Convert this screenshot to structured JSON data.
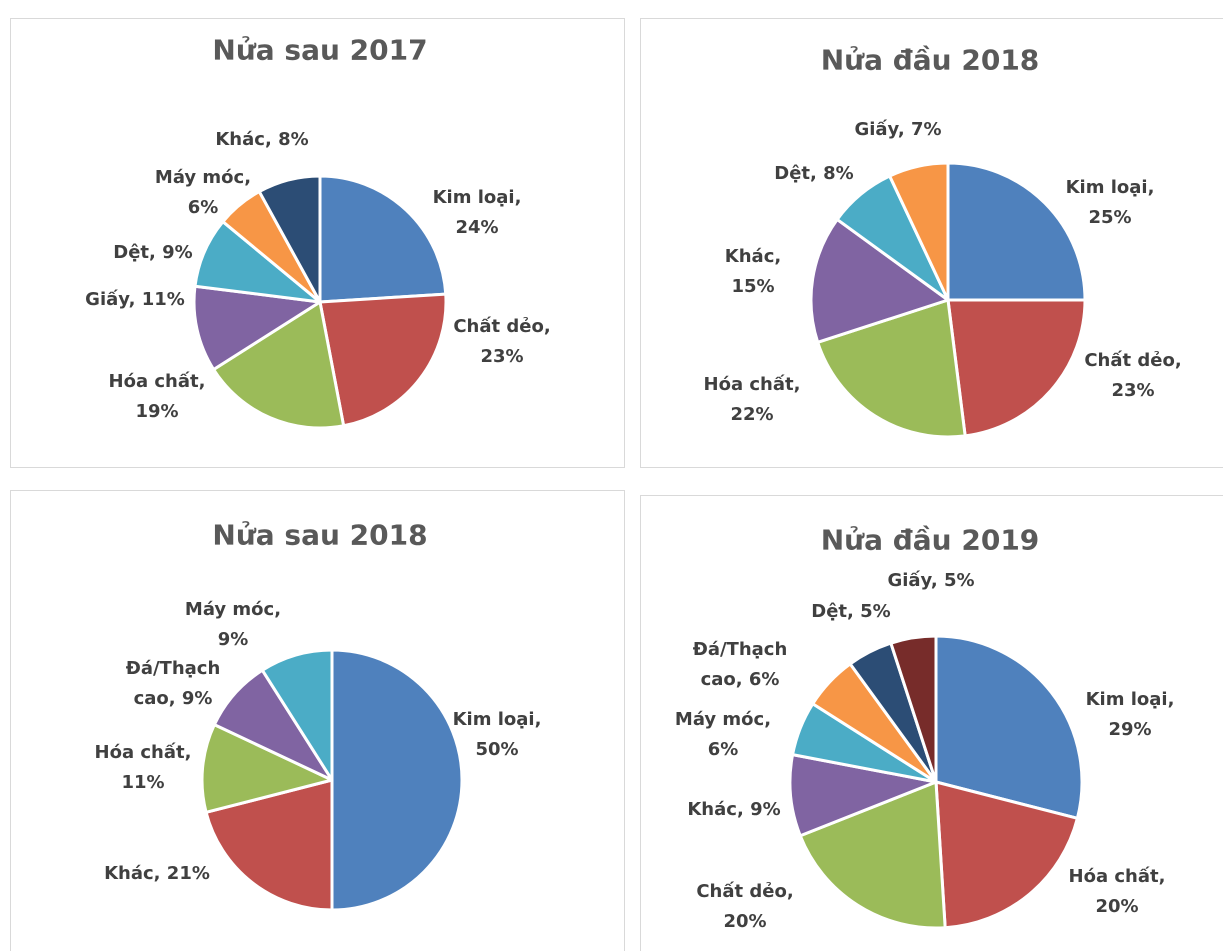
{
  "chart_data": [
    {
      "type": "pie",
      "title": "Nửa sau 2017",
      "categories": [
        "Kim loại,",
        "Chất dẻo,",
        "Hóa chất,",
        "Giấy,",
        "Dệt,",
        "Máy móc,",
        "Khác,"
      ],
      "values": [
        24,
        23,
        19,
        11,
        9,
        6,
        8
      ],
      "value_labels": [
        "24%",
        "23%",
        "19%",
        "11%",
        "9%",
        "6%",
        "8%"
      ],
      "colors": [
        "#4f81bd",
        "#c0504d",
        "#9bbb59",
        "#8064a2",
        "#4bacc6",
        "#f79646",
        "#2c4d75"
      ]
    },
    {
      "type": "pie",
      "title": "Nửa đầu 2018",
      "categories": [
        "Kim loại,",
        "Chất dẻo,",
        "Hóa chất,",
        "Khác,",
        "Dệt,",
        "Giấy,"
      ],
      "values": [
        25,
        23,
        22,
        15,
        8,
        7
      ],
      "value_labels": [
        "25%",
        "23%",
        "22%",
        "15%",
        "8%",
        "7%"
      ],
      "colors": [
        "#4f81bd",
        "#c0504d",
        "#9bbb59",
        "#8064a2",
        "#4bacc6",
        "#f79646"
      ]
    },
    {
      "type": "pie",
      "title": "Nửa sau 2018",
      "categories": [
        "Kim loại,",
        "Khác,",
        "Hóa chất,",
        "Đá/Thạch cao,",
        "Máy móc,"
      ],
      "values": [
        50,
        21,
        11,
        9,
        9
      ],
      "value_labels": [
        "50%",
        "21%",
        "11%",
        "9%",
        "9%"
      ],
      "colors": [
        "#4f81bd",
        "#c0504d",
        "#9bbb59",
        "#8064a2",
        "#4bacc6"
      ]
    },
    {
      "type": "pie",
      "title": "Nửa đầu 2019",
      "categories": [
        "Kim loại,",
        "Hóa chất,",
        "Chất dẻo,",
        "Khác,",
        "Máy móc,",
        "Đá/Thạch cao,",
        "Dệt,",
        "Giấy,"
      ],
      "values": [
        29,
        20,
        20,
        9,
        6,
        6,
        5,
        5
      ],
      "value_labels": [
        "29%",
        "20%",
        "20%",
        "9%",
        "6%",
        "6%",
        "5%",
        "5%"
      ],
      "colors": [
        "#4f81bd",
        "#c0504d",
        "#9bbb59",
        "#8064a2",
        "#4bacc6",
        "#f79646",
        "#2c4d75",
        "#772c2a"
      ]
    }
  ]
}
